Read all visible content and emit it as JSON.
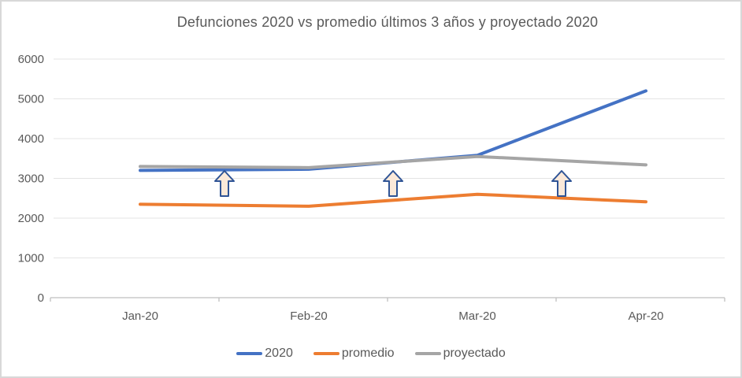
{
  "chart_data": {
    "type": "line",
    "title": "Defunciones 2020 vs promedio últimos 3 años y proyectado 2020",
    "categories": [
      "Jan-20",
      "Feb-20",
      "Mar-20",
      "Apr-20"
    ],
    "series": [
      {
        "name": "2020",
        "color": "#4472C4",
        "values": [
          3200,
          3230,
          3580,
          5200
        ]
      },
      {
        "name": "promedio",
        "color": "#ED7D31",
        "values": [
          2350,
          2300,
          2600,
          2410
        ]
      },
      {
        "name": "proyectado",
        "color": "#A5A5A5",
        "values": [
          3300,
          3270,
          3550,
          3340
        ]
      }
    ],
    "xlabel": "",
    "ylabel": "",
    "ylim": [
      0,
      6000
    ],
    "yticks": [
      0,
      1000,
      2000,
      3000,
      4000,
      5000,
      6000
    ],
    "grid": true,
    "legend_position": "bottom",
    "annotations": [
      {
        "type": "up-arrow",
        "between": [
          0,
          1
        ]
      },
      {
        "type": "up-arrow",
        "between": [
          1,
          2
        ]
      },
      {
        "type": "up-arrow",
        "between": [
          2,
          3
        ]
      }
    ],
    "annotation_style": {
      "fill": "#FBE9D9",
      "stroke": "#2F5496"
    },
    "colors": {
      "gridline": "#E4E4E4",
      "axis": "#BFBFBF",
      "text": "#595959",
      "background": "#FFFFFF",
      "border": "#D8D8D8"
    }
  }
}
